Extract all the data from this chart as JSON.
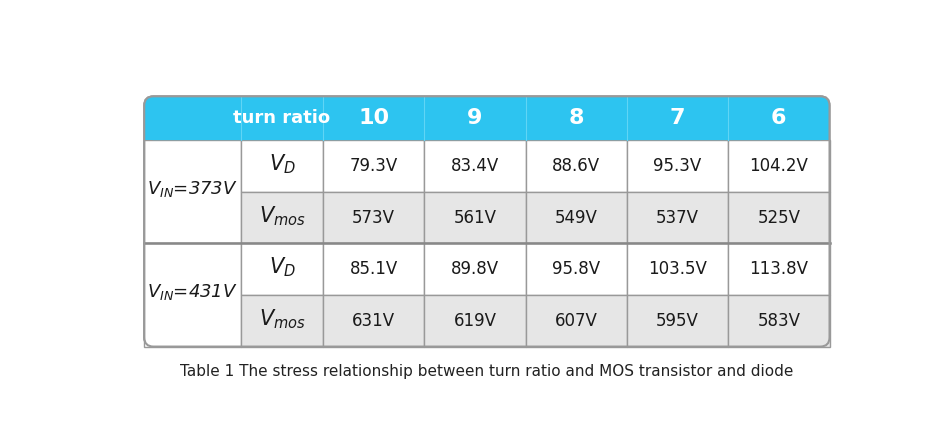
{
  "title": "Table 1 The stress relationship between turn ratio and MOS transistor and diode",
  "header_bg": "#2DC4F0",
  "header_text_color": "#FFFFFF",
  "cell_bg_white": "#FFFFFF",
  "cell_bg_gray": "#E6E6E6",
  "border_color": "#999999",
  "text_color": "#1a1a1a",
  "turn_ratios": [
    "10",
    "9",
    "8",
    "7",
    "6"
  ],
  "row_groups": [
    {
      "label": "$V_{IN}$=373V",
      "label_V": "V",
      "label_sub": "IN",
      "label_suffix": "=373V",
      "rows": [
        {
          "symbol": "V_D",
          "values": [
            "79.3V",
            "83.4V",
            "88.6V",
            "95.3V",
            "104.2V"
          ],
          "bg": "white"
        },
        {
          "symbol": "V_mos",
          "values": [
            "573V",
            "561V",
            "549V",
            "537V",
            "525V"
          ],
          "bg": "gray"
        }
      ]
    },
    {
      "label": "$V_{IN}$=431V",
      "label_V": "V",
      "label_sub": "IN",
      "label_suffix": "=431V",
      "rows": [
        {
          "symbol": "V_D",
          "values": [
            "85.1V",
            "89.8V",
            "95.8V",
            "103.5V",
            "113.8V"
          ],
          "bg": "white"
        },
        {
          "symbol": "V_mos",
          "values": [
            "631V",
            "619V",
            "607V",
            "595V",
            "583V"
          ],
          "bg": "gray"
        }
      ]
    }
  ],
  "figsize": [
    9.5,
    4.37
  ],
  "dpi": 100
}
